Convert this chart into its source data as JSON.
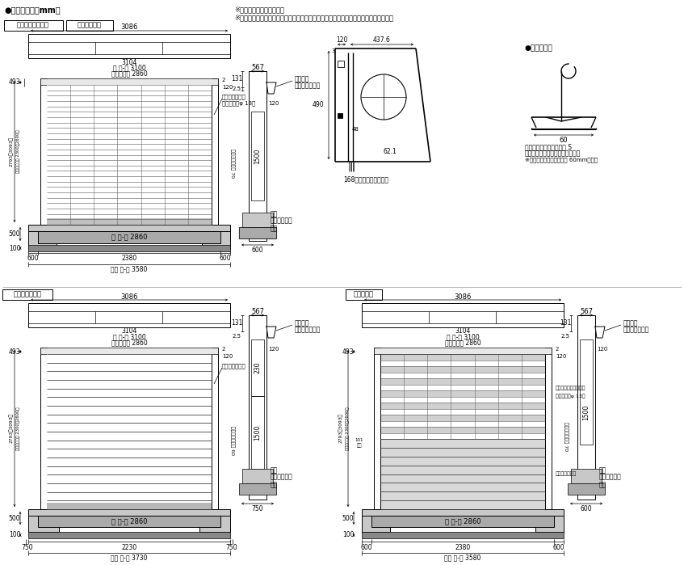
{
  "bg_color": "#ffffff",
  "gray_light": "#c8c8c8",
  "gray_med": "#aaaaaa",
  "gray_dark": "#888888",
  "gray_slat": "#d4d4d4",
  "black": "#000000",
  "header_title": "●寸法図（単位mm）",
  "note1": "※図面は電動タイプです。",
  "note2": "※電動タイプには、手動切替クラッチカバーが付きます。手動タイプには付きません。",
  "label_ss": "ステンレスパイプ",
  "label_al": "アルミパイプ",
  "label_alslat": "アルミスラット",
  "label_hl": "ハイリンク",
  "label_zaita": "●座板寸法図"
}
